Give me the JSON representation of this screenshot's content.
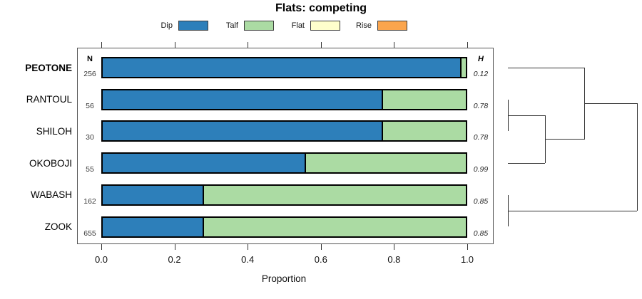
{
  "title": "Flats: competing",
  "xlabel": "Proportion",
  "columns": {
    "n_header": "N",
    "h_header": "H"
  },
  "legend": [
    {
      "label": "Dip",
      "color": "#2d7fba"
    },
    {
      "label": "Talf",
      "color": "#abdba3"
    },
    {
      "label": "Flat",
      "color": "#ffffcc"
    },
    {
      "label": "Rise",
      "color": "#fba54d"
    }
  ],
  "chart_data": {
    "type": "bar",
    "orientation": "horizontal",
    "stacked": true,
    "title": "Flats: competing",
    "xlabel": "Proportion",
    "xlim": [
      0,
      1
    ],
    "xticks": [
      0.0,
      0.2,
      0.4,
      0.6,
      0.8,
      1.0
    ],
    "grid": false,
    "legend_position": "top",
    "categories": [
      "PEOTONE",
      "RANTOUL",
      "SHILOH",
      "OKOBOJI",
      "WABASH",
      "ZOOK"
    ],
    "highlighted_category": "PEOTONE",
    "n_values": [
      256,
      56,
      30,
      55,
      162,
      655
    ],
    "h_values": [
      "0.12",
      "0.78",
      "0.78",
      "0.99",
      "0.85",
      "0.85"
    ],
    "series": [
      {
        "name": "Dip",
        "color": "#2d7fba",
        "values": [
          0.984,
          0.77,
          0.77,
          0.56,
          0.28,
          0.28
        ]
      },
      {
        "name": "Talf",
        "color": "#abdba3",
        "values": [
          0.016,
          0.23,
          0.23,
          0.44,
          0.72,
          0.72
        ]
      },
      {
        "name": "Flat",
        "color": "#ffffcc",
        "values": [
          0,
          0,
          0,
          0,
          0,
          0
        ]
      },
      {
        "name": "Rise",
        "color": "#fba54d",
        "values": [
          0,
          0,
          0,
          0,
          0,
          0
        ]
      }
    ],
    "dendrogram": {
      "description": "sideways cluster tree: (RANTOUL+SHILOH)+OKOBOJI joined with PEOTONE; WABASH+ZOOK cluster joins at root",
      "segments": [
        {
          "x1": 712,
          "y1": 95,
          "x2": 819,
          "y2": 95
        },
        {
          "x1": 819,
          "y1": 95,
          "x2": 819,
          "y2": 195.6
        },
        {
          "x1": 819,
          "y1": 145.3,
          "x2": 893,
          "y2": 145.3
        },
        {
          "x1": 712,
          "y1": 139.7,
          "x2": 712,
          "y2": 184.4
        },
        {
          "x1": 712,
          "y1": 162.1,
          "x2": 764,
          "y2": 162.1
        },
        {
          "x1": 764,
          "y1": 162.1,
          "x2": 764,
          "y2": 229.1
        },
        {
          "x1": 712,
          "y1": 229.1,
          "x2": 764,
          "y2": 229.1
        },
        {
          "x1": 764,
          "y1": 195.6,
          "x2": 819,
          "y2": 195.6
        },
        {
          "x1": 712,
          "y1": 273.8,
          "x2": 712,
          "y2": 318.5
        },
        {
          "x1": 712,
          "y1": 296.2,
          "x2": 893,
          "y2": 296.2
        },
        {
          "x1": 893,
          "y1": 145.3,
          "x2": 893,
          "y2": 296.2
        }
      ]
    }
  }
}
